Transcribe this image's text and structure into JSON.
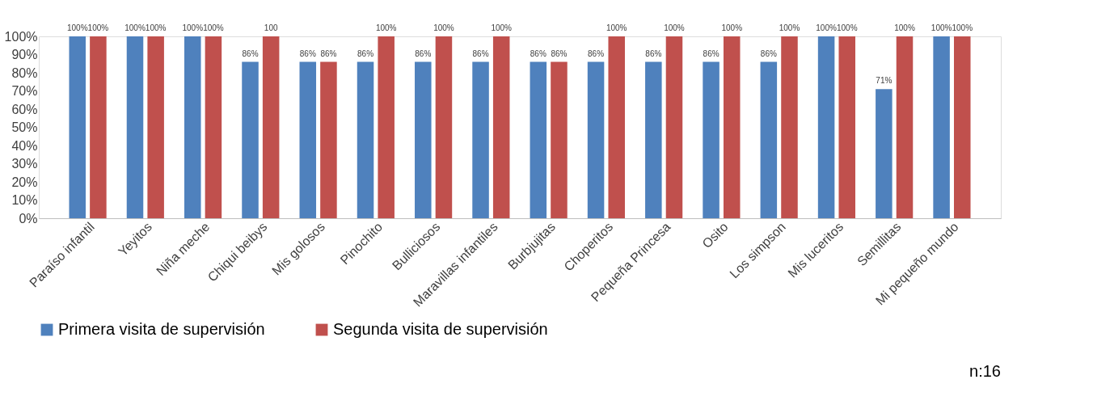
{
  "chart_data": {
    "type": "bar",
    "categories": [
      "Paraíso infantil",
      "Yeyitos",
      "Niña meche",
      "Chiqui beibys",
      "Mis golosos",
      "Pinochito",
      "Bulliciosos",
      "Maravillas infantiles",
      "Burbjujitas",
      "Choperitos",
      "Pequeña Princesa",
      "Osito",
      "Los simpson",
      "Mis luceritos",
      "Semillitas",
      "Mi pequeño mundo"
    ],
    "series": [
      {
        "name": "Primera visita de supervisión",
        "color": "#4f81bd",
        "values": [
          100,
          100,
          100,
          86,
          86,
          86,
          86,
          86,
          86,
          86,
          86,
          86,
          86,
          100,
          71,
          100
        ],
        "value_labels": [
          "100%",
          "100%",
          "100%",
          "86%",
          "86%",
          "86%",
          "86%",
          "86%",
          "86%",
          "86%",
          "86%",
          "86%",
          "86%",
          "100%",
          "71%",
          "100%"
        ]
      },
      {
        "name": "Segunda visita de supervisión",
        "color": "#c0504d",
        "values": [
          100,
          100,
          100,
          100,
          86,
          100,
          100,
          100,
          86,
          100,
          100,
          100,
          100,
          100,
          100,
          100
        ],
        "value_labels": [
          "100%",
          "100%",
          "100%",
          "100",
          "86%",
          "100%",
          "100%",
          "100%",
          "86%",
          "100%",
          "100%",
          "100%",
          "100%",
          "100%",
          "100%",
          "100%"
        ]
      }
    ],
    "ylim": [
      0,
      100
    ],
    "yticks": [
      {
        "value": 0,
        "label": "0%"
      },
      {
        "value": 10,
        "label": "10%"
      },
      {
        "value": 20,
        "label": "20%"
      },
      {
        "value": 30,
        "label": "30%"
      },
      {
        "value": 40,
        "label": "40%"
      },
      {
        "value": 50,
        "label": "50%"
      },
      {
        "value": 60,
        "label": "60%"
      },
      {
        "value": 70,
        "label": "70%"
      },
      {
        "value": 80,
        "label": "80%"
      },
      {
        "value": 90,
        "label": "90%"
      },
      {
        "value": 100,
        "label": "100%"
      }
    ],
    "grid": false,
    "legend": "bottom",
    "annotations": [
      "n:16"
    ]
  }
}
